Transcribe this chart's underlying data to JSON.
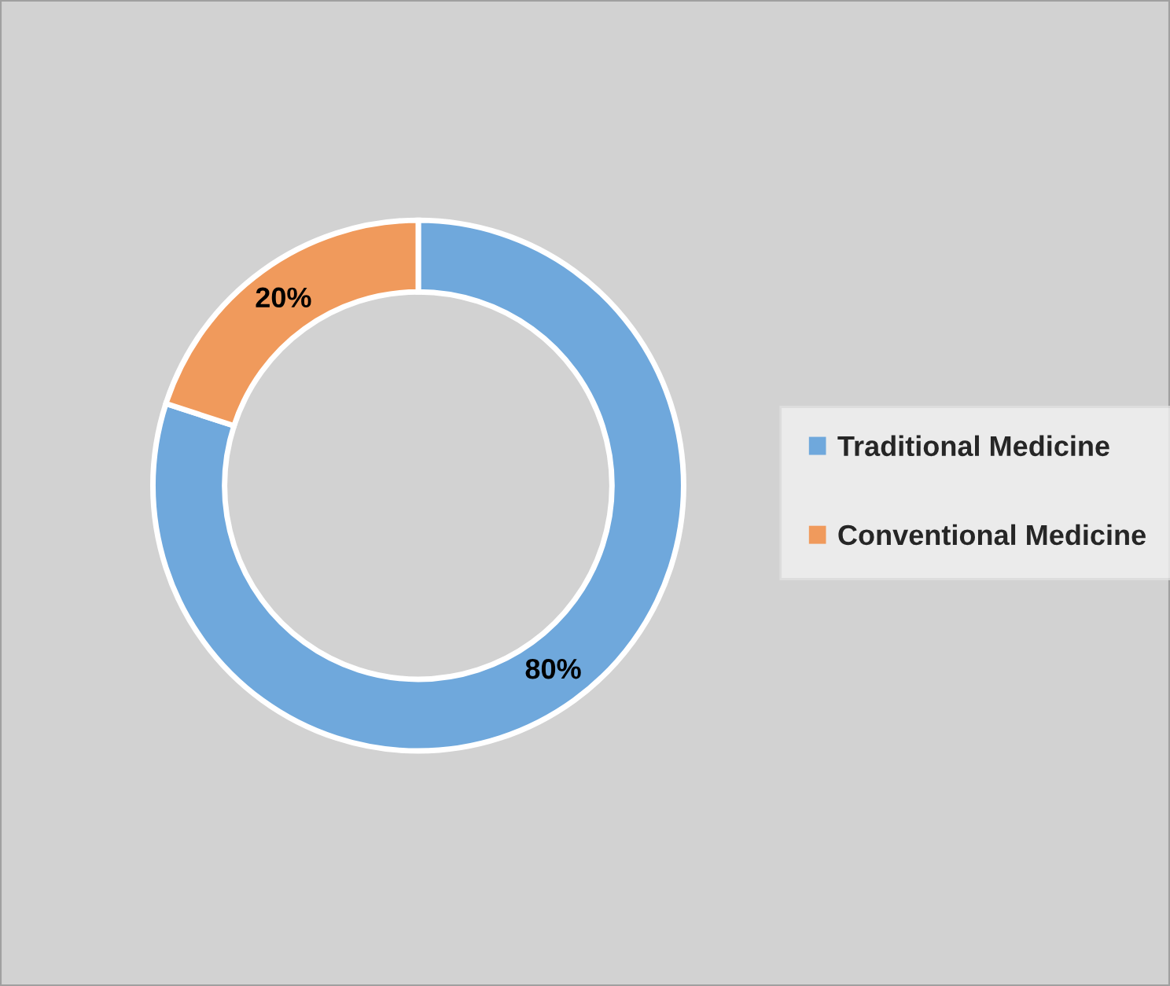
{
  "chart_data": {
    "type": "donut",
    "categories": [
      "Traditional Medicine",
      "Conventional Medicine"
    ],
    "values": [
      80,
      20
    ],
    "colors": [
      "#6fa8dc",
      "#f09a5c"
    ],
    "value_labels": [
      "80%",
      "20%"
    ],
    "legend": "right"
  }
}
